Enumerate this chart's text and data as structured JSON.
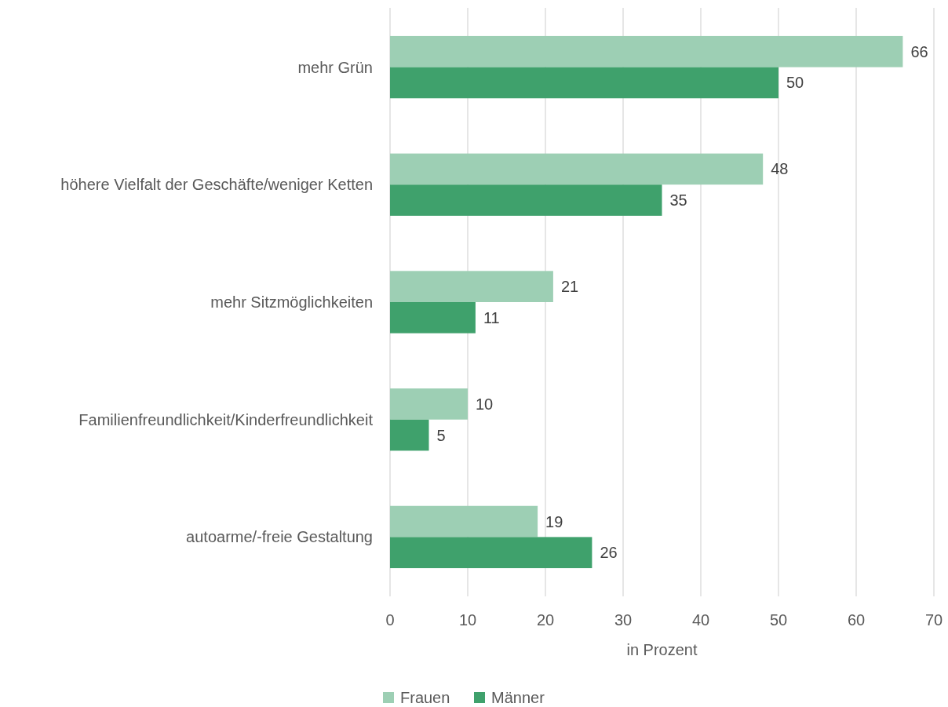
{
  "chart_data": {
    "type": "bar",
    "orientation": "horizontal",
    "xlabel": "in Prozent",
    "categories": [
      "mehr Grün",
      "höhere Vielfalt der Geschäfte/weniger Ketten",
      "mehr Sitzmöglichkeiten",
      "Familienfreundlichkeit/Kinderfreundlichkeit",
      "autoarme/-freie Gestaltung"
    ],
    "series": [
      {
        "name": "Frauen",
        "color": "#9dcfb4",
        "values": [
          66,
          48,
          21,
          10,
          19
        ]
      },
      {
        "name": "Männer",
        "color": "#3fa16c",
        "values": [
          50,
          35,
          11,
          5,
          26
        ]
      }
    ],
    "xlim": [
      0,
      70
    ],
    "xticks": [
      0,
      10,
      20,
      30,
      40,
      50,
      60,
      70
    ],
    "grid": "x",
    "legend": "bottom",
    "data_labels": true
  }
}
